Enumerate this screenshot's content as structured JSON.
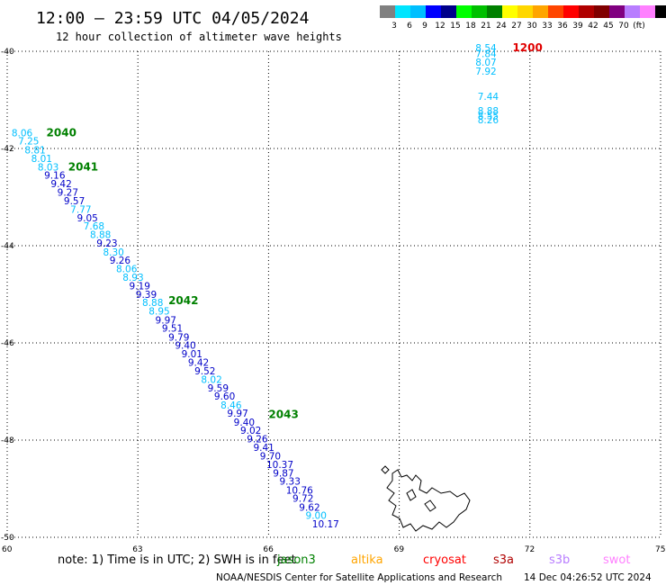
{
  "header": {
    "title": "12:00 – 23:59 UTC 04/05/2024",
    "subtitle": "12 hour collection of altimeter wave heights"
  },
  "legend": {
    "colors": [
      "#808080",
      "#00e5ff",
      "#00bfff",
      "#0000ff",
      "#00008b",
      "#00ff00",
      "#00c000",
      "#008000",
      "#ffff00",
      "#ffd700",
      "#ffa500",
      "#ff4500",
      "#ff0000",
      "#b00000",
      "#800000",
      "#800080",
      "#b87dff",
      "#ff80ff",
      "#000000"
    ],
    "labels": [
      "3",
      "6",
      "9",
      "12",
      "15",
      "18",
      "21",
      "24",
      "27",
      "30",
      "33",
      "36",
      "39",
      "42",
      "45",
      "70",
      "(ft)"
    ]
  },
  "map": {
    "lat_labels": [
      "-40",
      "-42",
      "-44",
      "-46",
      "-48",
      "-50"
    ],
    "lon_labels": [
      "60",
      "63",
      "66",
      "69",
      "72",
      "75"
    ]
  },
  "tracks": [
    {
      "time": "2040",
      "color": "#008000",
      "lon": 60.9,
      "lat": -41.75
    },
    {
      "time": "2041",
      "color": "#008000",
      "lon": 61.4,
      "lat": -42.45
    },
    {
      "time": "2042",
      "color": "#008000",
      "lon": 63.7,
      "lat": -45.2
    },
    {
      "time": "2043",
      "color": "#008000",
      "lon": 66.0,
      "lat": -47.55
    },
    {
      "time": "1200",
      "color": "#e00000",
      "lon": 71.6,
      "lat": -40.0
    }
  ],
  "readings": [
    {
      "v": "8.06",
      "c": "#00bfff",
      "lon": 60.1,
      "lat": -41.75
    },
    {
      "v": "7.25",
      "c": "#00bfff",
      "lon": 60.25,
      "lat": -41.92
    },
    {
      "v": "8.81",
      "c": "#00bfff",
      "lon": 60.4,
      "lat": -42.1
    },
    {
      "v": "8.01",
      "c": "#00bfff",
      "lon": 60.55,
      "lat": -42.28
    },
    {
      "v": "8.03",
      "c": "#00bfff",
      "lon": 60.7,
      "lat": -42.45
    },
    {
      "v": "9.16",
      "c": "#0000c8",
      "lon": 60.85,
      "lat": -42.62
    },
    {
      "v": "9.42",
      "c": "#0000c8",
      "lon": 61.0,
      "lat": -42.8
    },
    {
      "v": "9.27",
      "c": "#0000c8",
      "lon": 61.15,
      "lat": -42.97
    },
    {
      "v": "9.57",
      "c": "#0000c8",
      "lon": 61.3,
      "lat": -43.15
    },
    {
      "v": "7.77",
      "c": "#00bfff",
      "lon": 61.45,
      "lat": -43.32
    },
    {
      "v": "9.05",
      "c": "#0000c8",
      "lon": 61.6,
      "lat": -43.5
    },
    {
      "v": "7.68",
      "c": "#00bfff",
      "lon": 61.75,
      "lat": -43.67
    },
    {
      "v": "8.88",
      "c": "#00bfff",
      "lon": 61.9,
      "lat": -43.84
    },
    {
      "v": "9.23",
      "c": "#0000c8",
      "lon": 62.05,
      "lat": -44.02
    },
    {
      "v": "8.30",
      "c": "#00bfff",
      "lon": 62.2,
      "lat": -44.2
    },
    {
      "v": "9.26",
      "c": "#0000c8",
      "lon": 62.35,
      "lat": -44.37
    },
    {
      "v": "8.06",
      "c": "#00bfff",
      "lon": 62.5,
      "lat": -44.55
    },
    {
      "v": "8.93",
      "c": "#00bfff",
      "lon": 62.65,
      "lat": -44.72
    },
    {
      "v": "9.19",
      "c": "#0000c8",
      "lon": 62.8,
      "lat": -44.9
    },
    {
      "v": "9.39",
      "c": "#0000c8",
      "lon": 62.95,
      "lat": -45.07
    },
    {
      "v": "8.88",
      "c": "#00bfff",
      "lon": 63.1,
      "lat": -45.24
    },
    {
      "v": "8.95",
      "c": "#00bfff",
      "lon": 63.25,
      "lat": -45.42
    },
    {
      "v": "9.97",
      "c": "#0000c8",
      "lon": 63.4,
      "lat": -45.6
    },
    {
      "v": "9.51",
      "c": "#0000c8",
      "lon": 63.55,
      "lat": -45.77
    },
    {
      "v": "9.79",
      "c": "#0000c8",
      "lon": 63.7,
      "lat": -45.95
    },
    {
      "v": "9.40",
      "c": "#0000c8",
      "lon": 63.85,
      "lat": -46.12
    },
    {
      "v": "9.01",
      "c": "#0000c8",
      "lon": 64.0,
      "lat": -46.3
    },
    {
      "v": "9.42",
      "c": "#0000c8",
      "lon": 64.15,
      "lat": -46.47
    },
    {
      "v": "9.52",
      "c": "#0000c8",
      "lon": 64.3,
      "lat": -46.65
    },
    {
      "v": "8.02",
      "c": "#00bfff",
      "lon": 64.45,
      "lat": -46.82
    },
    {
      "v": "9.59",
      "c": "#0000c8",
      "lon": 64.6,
      "lat": -47.0
    },
    {
      "v": "9.60",
      "c": "#0000c8",
      "lon": 64.75,
      "lat": -47.17
    },
    {
      "v": "8.46",
      "c": "#00bfff",
      "lon": 64.9,
      "lat": -47.35
    },
    {
      "v": "9.97",
      "c": "#0000c8",
      "lon": 65.05,
      "lat": -47.52
    },
    {
      "v": "9.40",
      "c": "#0000c8",
      "lon": 65.2,
      "lat": -47.7
    },
    {
      "v": "9.02",
      "c": "#0000c8",
      "lon": 65.35,
      "lat": -47.87
    },
    {
      "v": "9.26",
      "c": "#0000c8",
      "lon": 65.5,
      "lat": -48.05
    },
    {
      "v": "9.41",
      "c": "#0000c8",
      "lon": 65.65,
      "lat": -48.22
    },
    {
      "v": "9.70",
      "c": "#0000c8",
      "lon": 65.8,
      "lat": -48.4
    },
    {
      "v": "10.37",
      "c": "#0000c8",
      "lon": 65.95,
      "lat": -48.57
    },
    {
      "v": "9.87",
      "c": "#0000c8",
      "lon": 66.1,
      "lat": -48.75
    },
    {
      "v": "9.33",
      "c": "#0000c8",
      "lon": 66.25,
      "lat": -48.92
    },
    {
      "v": "10.76",
      "c": "#0000c8",
      "lon": 66.4,
      "lat": -49.1
    },
    {
      "v": "9.72",
      "c": "#0000c8",
      "lon": 66.55,
      "lat": -49.27
    },
    {
      "v": "9.62",
      "c": "#0000c8",
      "lon": 66.7,
      "lat": -49.45
    },
    {
      "v": "9.00",
      "c": "#00bfff",
      "lon": 66.85,
      "lat": -49.62
    },
    {
      "v": "10.17",
      "c": "#0000c8",
      "lon": 67.0,
      "lat": -49.8
    },
    {
      "v": "8.54",
      "c": "#00bfff",
      "lon": 70.75,
      "lat": -40.0
    },
    {
      "v": "7.84",
      "c": "#00bfff",
      "lon": 70.75,
      "lat": -40.12
    },
    {
      "v": "8.07",
      "c": "#00bfff",
      "lon": 70.75,
      "lat": -40.3
    },
    {
      "v": "7.92",
      "c": "#00bfff",
      "lon": 70.75,
      "lat": -40.48
    },
    {
      "v": "7.44",
      "c": "#00bfff",
      "lon": 70.8,
      "lat": -41.0
    },
    {
      "v": "8.88",
      "c": "#00bfff",
      "lon": 70.8,
      "lat": -41.3
    },
    {
      "v": "8.55",
      "c": "#00bfff",
      "lon": 70.8,
      "lat": -41.4
    },
    {
      "v": "8.26",
      "c": "#00bfff",
      "lon": 70.8,
      "lat": -41.48
    }
  ],
  "satellites": [
    {
      "name": "note:  1) Time is in UTC; 2) SWH is in feet",
      "color": "#000000"
    },
    {
      "name": "jason3",
      "color": "#008000"
    },
    {
      "name": "altika",
      "color": "#ffa500"
    },
    {
      "name": "cryosat",
      "color": "#ff0000"
    },
    {
      "name": "s3a",
      "color": "#b00000"
    },
    {
      "name": "s3b",
      "color": "#b87dff"
    },
    {
      "name": "swot",
      "color": "#ff80ff"
    }
  ],
  "footer": {
    "credit": "NOAA/NESDIS Center for Satellite Applications and Research",
    "timestamp": "14 Dec 04:26:52 UTC 2024"
  }
}
